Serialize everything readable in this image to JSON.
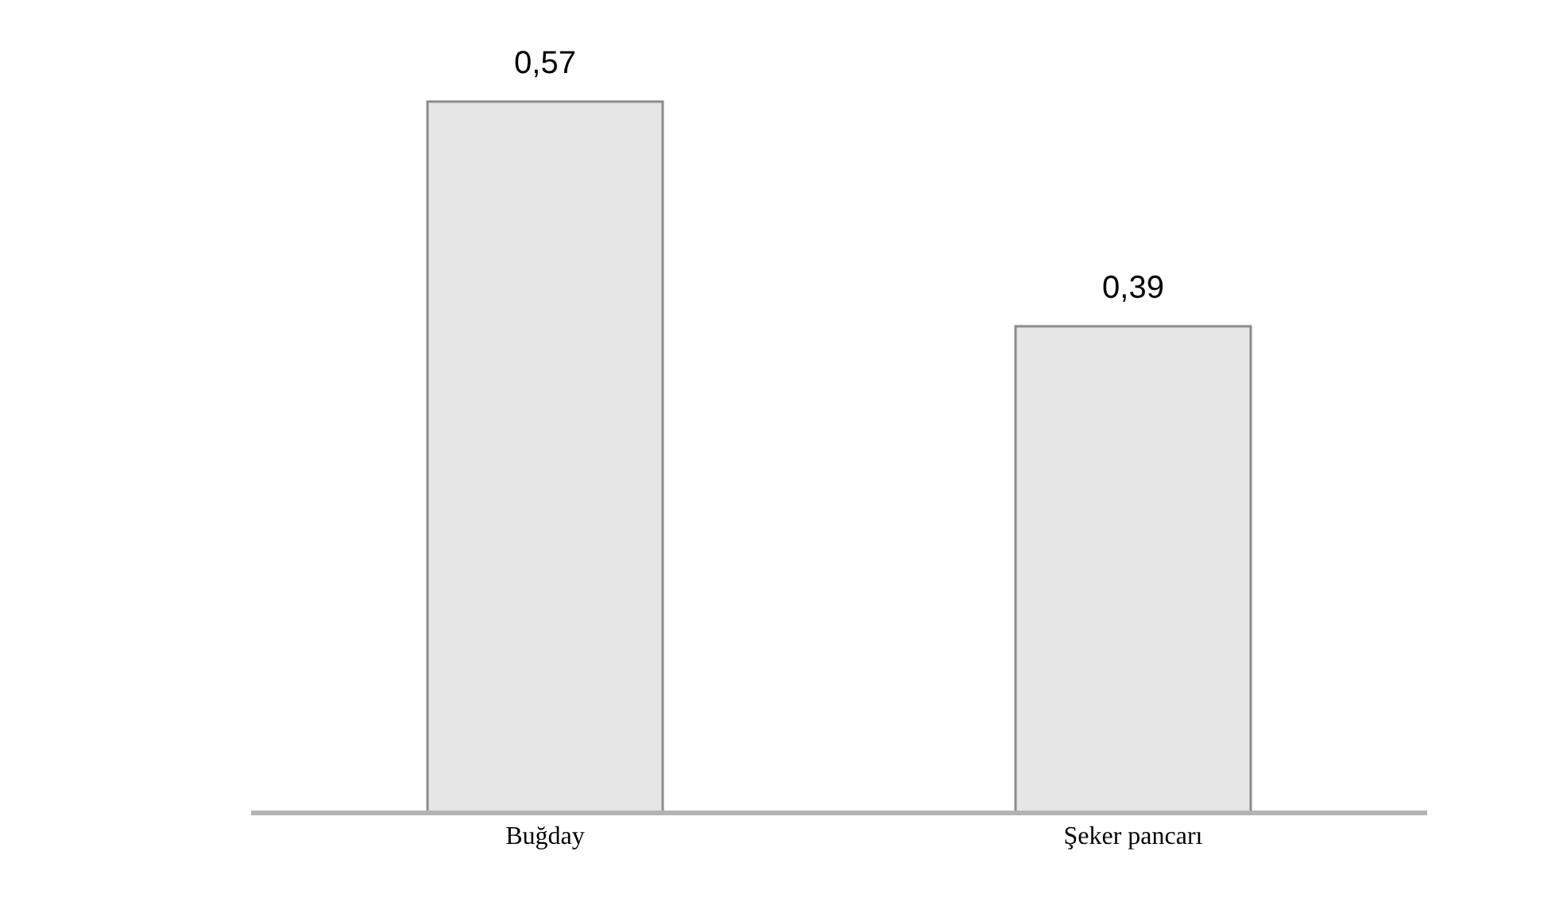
{
  "chart_data": {
    "type": "bar",
    "categories": [
      "Buğday",
      "Şeker pancarı"
    ],
    "values": [
      0.57,
      0.39
    ],
    "value_labels": [
      "0,57",
      "0,39"
    ],
    "color": "#e6e6e6"
  }
}
